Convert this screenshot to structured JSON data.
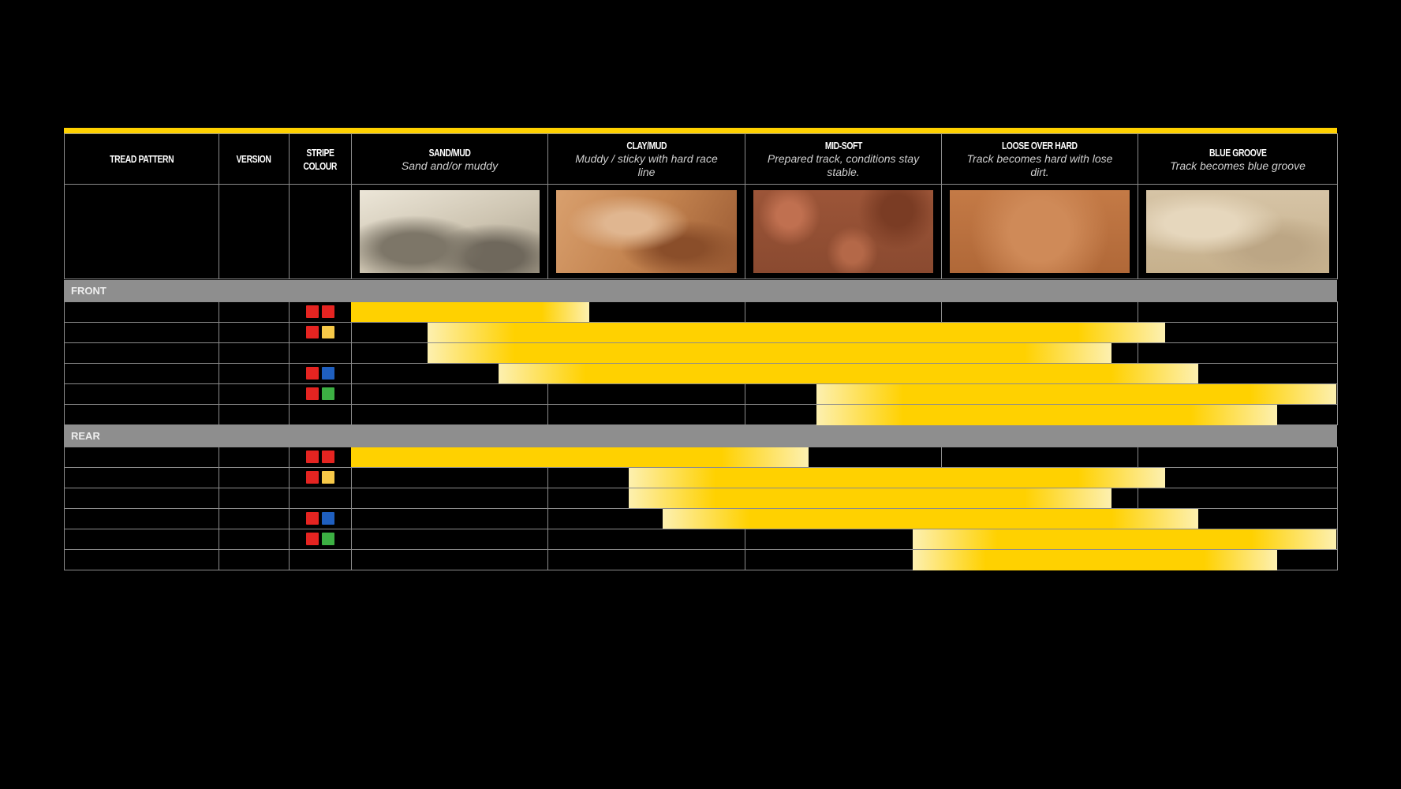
{
  "columns": {
    "tread_pattern": "TREAD PATTERN",
    "version": "VERSION",
    "stripe_colour": [
      "STRIPE",
      "COLOUR"
    ]
  },
  "conditions": [
    {
      "title": "SAND/MUD",
      "subtitle": "Sand and/or muddy",
      "image": "sand-photo",
      "color": "#cfc6b3"
    },
    {
      "title": "CLAY/MUD",
      "subtitle": "Muddy / sticky with hard race line",
      "image": "clay-photo",
      "color": "#c3834f"
    },
    {
      "title": "MID-SOFT",
      "subtitle": "Prepared track, conditions stay stable.",
      "image": "mid-soft-photo",
      "color": "#9c5538"
    },
    {
      "title": "LOOSE OVER HARD",
      "subtitle": "Track becomes hard with lose dirt.",
      "image": "loose-over-hard-photo",
      "color": "#c47a46"
    },
    {
      "title": "BLUE GROOVE",
      "subtitle": "Track becomes blue groove",
      "image": "blue-groove-photo",
      "color": "#d6c4a6"
    }
  ],
  "colors": {
    "bar": "#ffd100",
    "bar_fade": "#fdf0b0",
    "red": "#e52421",
    "yellow": "#f7c948",
    "blue": "#1f5fbf",
    "green": "#3cb043",
    "grid": "#8c8c8c",
    "section": "#8e8e8e"
  },
  "sections": [
    {
      "label": "FRONT",
      "rows": [
        {
          "stripes": [
            "red",
            "red"
          ],
          "range": [
            0,
            1.21
          ]
        },
        {
          "stripes": [
            "red",
            "yellow"
          ],
          "range": [
            0.39,
            4.13
          ]
        },
        {
          "stripes": [],
          "range": [
            0.39,
            3.86
          ]
        },
        {
          "stripes": [
            "red",
            "blue"
          ],
          "range": [
            0.75,
            4.3
          ]
        },
        {
          "stripes": [
            "red",
            "green"
          ],
          "range": [
            2.36,
            5.0
          ]
        },
        {
          "stripes": [],
          "range": [
            2.36,
            4.7
          ]
        }
      ]
    },
    {
      "label": "REAR",
      "rows": [
        {
          "stripes": [
            "red",
            "red"
          ],
          "range": [
            0,
            2.32
          ]
        },
        {
          "stripes": [
            "red",
            "yellow"
          ],
          "range": [
            1.41,
            4.13
          ]
        },
        {
          "stripes": [],
          "range": [
            1.41,
            3.86
          ]
        },
        {
          "stripes": [
            "red",
            "blue"
          ],
          "range": [
            1.58,
            4.3
          ]
        },
        {
          "stripes": [
            "red",
            "green"
          ],
          "range": [
            2.85,
            5.0
          ]
        },
        {
          "stripes": [],
          "range": [
            2.85,
            4.7
          ]
        }
      ]
    }
  ]
}
